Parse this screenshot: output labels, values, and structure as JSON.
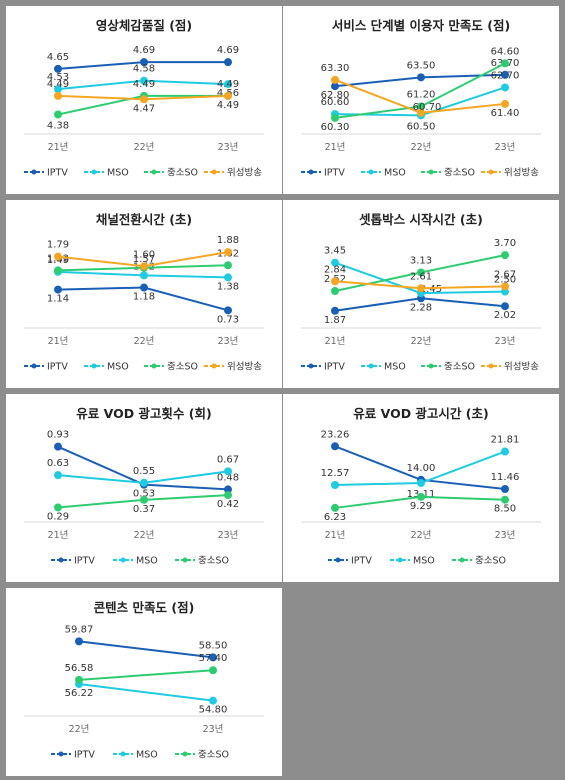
{
  "colors": {
    "IPTV": "#1a5fb4",
    "MSO": "#1ecbe1",
    "중소SO": "#2ecc71",
    "위성방송": "#f5a623"
  },
  "chart_data": [
    {
      "type": "line",
      "title": "영상체감품질 (점)",
      "categories": [
        "21년",
        "22년",
        "23년"
      ],
      "ylim": [
        4.3,
        4.75
      ],
      "series": [
        {
          "name": "IPTV",
          "values": [
            4.65,
            4.69,
            4.69
          ]
        },
        {
          "name": "MSO",
          "values": [
            4.53,
            4.58,
            4.56
          ]
        },
        {
          "name": "중소SO",
          "values": [
            4.38,
            4.49,
            4.49
          ]
        },
        {
          "name": "위성방송",
          "values": [
            4.49,
            4.47,
            4.49
          ]
        }
      ]
    },
    {
      "type": "line",
      "title": "서비스 단계별 이용자 만족도 (점)",
      "categories": [
        "21년",
        "22년",
        "23년"
      ],
      "ylim": [
        59.5,
        65.5
      ],
      "series": [
        {
          "name": "IPTV",
          "values": [
            62.8,
            63.5,
            63.7
          ]
        },
        {
          "name": "MSO",
          "values": [
            60.6,
            60.5,
            62.7
          ]
        },
        {
          "name": "중소SO",
          "values": [
            60.3,
            61.2,
            64.6
          ]
        },
        {
          "name": "위성방송",
          "values": [
            63.3,
            60.7,
            61.4
          ]
        }
      ]
    },
    {
      "type": "line",
      "title": "채널전환시간 (초)",
      "categories": [
        "21년",
        "22년",
        "23년"
      ],
      "ylim": [
        0.5,
        2.0
      ],
      "series": [
        {
          "name": "IPTV",
          "values": [
            1.14,
            1.18,
            0.73
          ]
        },
        {
          "name": "MSO",
          "values": [
            1.49,
            1.42,
            1.38
          ]
        },
        {
          "name": "중소SO",
          "values": [
            1.52,
            1.57,
            1.62
          ]
        },
        {
          "name": "위성방송",
          "values": [
            1.79,
            1.6,
            1.88
          ]
        }
      ]
    },
    {
      "type": "line",
      "title": "셋톱박스 시작시간 (초)",
      "categories": [
        "21년",
        "22년",
        "23년"
      ],
      "ylim": [
        1.5,
        4.0
      ],
      "series": [
        {
          "name": "IPTV",
          "values": [
            1.87,
            2.28,
            2.02
          ]
        },
        {
          "name": "MSO",
          "values": [
            3.45,
            2.45,
            2.5
          ]
        },
        {
          "name": "중소SO",
          "values": [
            2.52,
            3.13,
            3.7
          ]
        },
        {
          "name": "위성방송",
          "values": [
            2.84,
            2.61,
            2.67
          ]
        }
      ]
    },
    {
      "type": "line",
      "title": "유료 VOD 광고횟수 (회)",
      "categories": [
        "21년",
        "22년",
        "23년"
      ],
      "ylim": [
        0.2,
        1.0
      ],
      "series": [
        {
          "name": "IPTV",
          "values": [
            0.93,
            0.53,
            0.48
          ]
        },
        {
          "name": "MSO",
          "values": [
            0.63,
            0.55,
            0.67
          ]
        },
        {
          "name": "중소SO",
          "values": [
            0.29,
            0.37,
            0.42
          ]
        }
      ]
    },
    {
      "type": "line",
      "title": "유료 VOD 광고시간 (초)",
      "categories": [
        "21년",
        "22년",
        "23년"
      ],
      "ylim": [
        4,
        25
      ],
      "series": [
        {
          "name": "IPTV",
          "values": [
            23.26,
            14.0,
            11.46
          ]
        },
        {
          "name": "MSO",
          "values": [
            12.57,
            13.11,
            21.81
          ]
        },
        {
          "name": "중소SO",
          "values": [
            6.23,
            9.29,
            8.5
          ]
        }
      ]
    },
    {
      "type": "line",
      "title": "콘텐츠 만족도 (점)",
      "categories": [
        "22년",
        "23년"
      ],
      "ylim": [
        54,
        60.5
      ],
      "series": [
        {
          "name": "IPTV",
          "values": [
            59.87,
            58.5
          ]
        },
        {
          "name": "MSO",
          "values": [
            56.22,
            54.8
          ]
        },
        {
          "name": "중소SO",
          "values": [
            56.58,
            57.4
          ]
        }
      ]
    }
  ]
}
